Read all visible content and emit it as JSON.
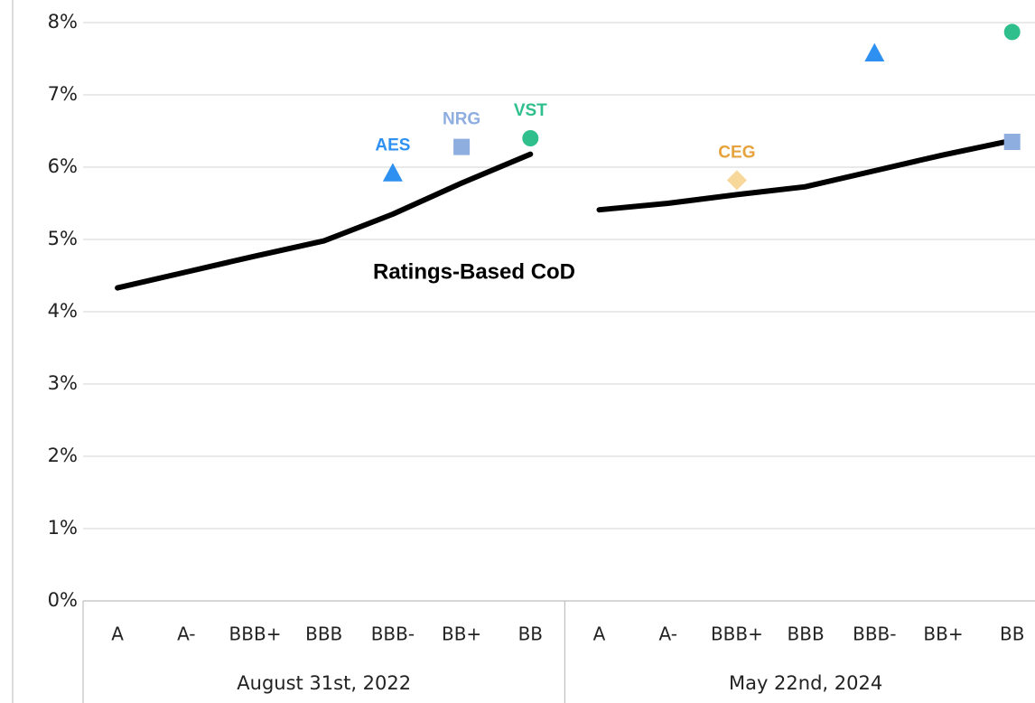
{
  "chart_data": {
    "type": "line",
    "line_label": "Ratings-Based CoD",
    "line_color": "#000000",
    "groups": [
      {
        "label": "August 31st, 2022",
        "categories": [
          "A",
          "A-",
          "BBB+",
          "BBB",
          "BBB-",
          "BB+",
          "BB"
        ],
        "values": [
          4.33,
          4.55,
          4.77,
          4.98,
          5.35,
          5.78,
          6.18
        ]
      },
      {
        "label": "May 22nd, 2024",
        "categories": [
          "A",
          "A-",
          "BBB+",
          "BBB",
          "BBB-",
          "BB+",
          "BB"
        ],
        "values": [
          5.41,
          5.5,
          5.62,
          5.73,
          5.95,
          6.17,
          6.37
        ]
      }
    ],
    "points": [
      {
        "label": "AES",
        "shape": "triangle",
        "color": "#2e90f0",
        "label_color": "#2e90f0",
        "group": 0,
        "category": 4,
        "value": 5.92
      },
      {
        "label": "NRG",
        "shape": "square",
        "color": "#8eaee0",
        "label_color": "#8eaee0",
        "group": 0,
        "category": 5,
        "value": 6.28
      },
      {
        "label": "VST",
        "shape": "circle",
        "color": "#2fbf8c",
        "label_color": "#2fbf8c",
        "group": 0,
        "category": 6,
        "value": 6.4
      },
      {
        "label": "CEG",
        "shape": "diamond",
        "color": "#f8d79a",
        "label_color": "#e6a23c",
        "group": 1,
        "category": 2,
        "value": 5.82
      },
      {
        "shape": "triangle",
        "color": "#2e90f0",
        "group": 1,
        "category": 4,
        "value": 7.58
      },
      {
        "shape": "circle",
        "color": "#2fbf8c",
        "group": 1,
        "category": 6,
        "value": 7.87
      },
      {
        "shape": "square",
        "color": "#8eaee0",
        "group": 1,
        "category": 6,
        "value": 6.35
      }
    ],
    "ylim": [
      0,
      8
    ],
    "yticks": [
      {
        "value": 0,
        "label": "0%"
      },
      {
        "value": 1,
        "label": "1%"
      },
      {
        "value": 2,
        "label": "2%"
      },
      {
        "value": 3,
        "label": "3%"
      },
      {
        "value": 4,
        "label": "4%"
      },
      {
        "value": 5,
        "label": "5%"
      },
      {
        "value": 6,
        "label": "6%"
      },
      {
        "value": 7,
        "label": "7%"
      },
      {
        "value": 8,
        "label": "8%"
      }
    ],
    "grid": true
  }
}
